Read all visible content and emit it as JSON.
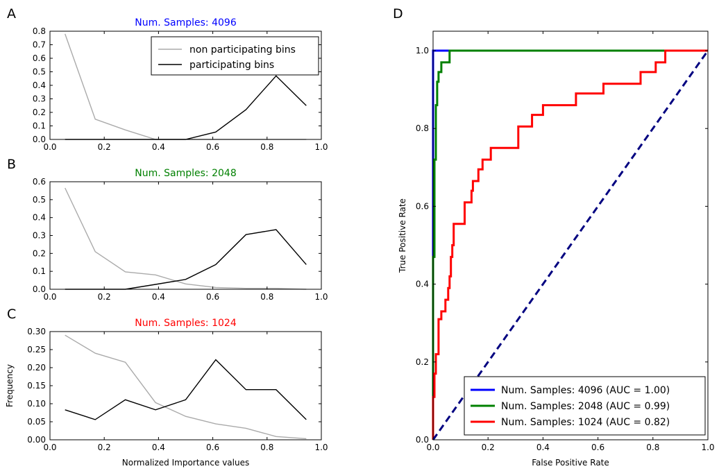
{
  "chart_data": [
    {
      "panel": "A",
      "type": "line",
      "title": "Num. Samples: 4096",
      "title_color": "#0000ff",
      "xlabel": "",
      "ylabel": "",
      "xlim": [
        0,
        1.0
      ],
      "ylim": [
        0,
        0.8
      ],
      "xticks": [
        0,
        0.2,
        0.4,
        0.6,
        0.8,
        1.0
      ],
      "xtick_labels": [
        "0.0",
        "0.2",
        "0.4",
        "0.6",
        "0.8",
        "1.0"
      ],
      "yticks": [
        0,
        0.1,
        0.2,
        0.3,
        0.4,
        0.5,
        0.6,
        0.7,
        0.8
      ],
      "ytick_labels": [
        "0.0",
        "0.1",
        "0.2",
        "0.3",
        "0.4",
        "0.5",
        "0.6",
        "0.7",
        "0.8"
      ],
      "legend": "top-right",
      "x": [
        0.0556,
        0.1667,
        0.2778,
        0.3889,
        0.5,
        0.6111,
        0.7222,
        0.8333,
        0.9444
      ],
      "series": [
        {
          "name": "non participating bins",
          "color": "#aaaaaa",
          "values": [
            0.78,
            0.15,
            0.07,
            0.0,
            0.0,
            0.0,
            0.0,
            0.0,
            0.0
          ]
        },
        {
          "name": "participating bins",
          "color": "#000000",
          "values": [
            0.0,
            0.0,
            0.0,
            0.0,
            0.0,
            0.055,
            0.22,
            0.47,
            0.25
          ]
        }
      ]
    },
    {
      "panel": "B",
      "type": "line",
      "title": "Num. Samples: 2048",
      "title_color": "#008000",
      "xlabel": "",
      "ylabel": "",
      "xlim": [
        0,
        1.0
      ],
      "ylim": [
        0,
        0.6
      ],
      "xticks": [
        0,
        0.2,
        0.4,
        0.6,
        0.8,
        1.0
      ],
      "xtick_labels": [
        "0.0",
        "0.2",
        "0.4",
        "0.6",
        "0.8",
        "1.0"
      ],
      "yticks": [
        0,
        0.1,
        0.2,
        0.3,
        0.4,
        0.5,
        0.6
      ],
      "ytick_labels": [
        "0.0",
        "0.1",
        "0.2",
        "0.3",
        "0.4",
        "0.5",
        "0.6"
      ],
      "x": [
        0.0556,
        0.1667,
        0.2778,
        0.3889,
        0.5,
        0.6111,
        0.7222,
        0.8333,
        0.9444
      ],
      "series": [
        {
          "name": "non participating bins",
          "color": "#aaaaaa",
          "values": [
            0.565,
            0.21,
            0.097,
            0.08,
            0.03,
            0.01,
            0.005,
            0.005,
            0.0
          ]
        },
        {
          "name": "participating bins",
          "color": "#000000",
          "values": [
            0.0,
            0.0,
            0.0,
            0.027,
            0.055,
            0.138,
            0.305,
            0.333,
            0.138
          ]
        }
      ]
    },
    {
      "panel": "C",
      "type": "line",
      "title": "Num. Samples: 1024",
      "title_color": "#ff0000",
      "xlabel": "Normalized Importance values",
      "ylabel": "Frequency",
      "xlim": [
        0,
        1.0
      ],
      "ylim": [
        0,
        0.3
      ],
      "xticks": [
        0,
        0.2,
        0.4,
        0.6,
        0.8,
        1.0
      ],
      "xtick_labels": [
        "0.0",
        "0.2",
        "0.4",
        "0.6",
        "0.8",
        "1.0"
      ],
      "yticks": [
        0,
        0.05,
        0.1,
        0.15,
        0.2,
        0.25,
        0.3
      ],
      "ytick_labels": [
        "0.00",
        "0.05",
        "0.10",
        "0.15",
        "0.20",
        "0.25",
        "0.30"
      ],
      "x": [
        0.0556,
        0.1667,
        0.2778,
        0.3889,
        0.5,
        0.6111,
        0.7222,
        0.8333,
        0.9444
      ],
      "series": [
        {
          "name": "non participating bins",
          "color": "#aaaaaa",
          "values": [
            0.29,
            0.24,
            0.215,
            0.103,
            0.065,
            0.044,
            0.032,
            0.009,
            0.003
          ]
        },
        {
          "name": "participating bins",
          "color": "#000000",
          "values": [
            0.083,
            0.056,
            0.111,
            0.083,
            0.111,
            0.222,
            0.139,
            0.139,
            0.056
          ]
        }
      ]
    },
    {
      "panel": "D",
      "type": "line",
      "title": "",
      "xlabel": "False Positive Rate",
      "ylabel": "True Positive Rate",
      "xlim": [
        0,
        1.0
      ],
      "ylim": [
        0,
        1.05
      ],
      "xticks": [
        0,
        0.2,
        0.4,
        0.6,
        0.8,
        1.0
      ],
      "xtick_labels": [
        "0.0",
        "0.2",
        "0.4",
        "0.6",
        "0.8",
        "1.0"
      ],
      "yticks": [
        0,
        0.2,
        0.4,
        0.6,
        0.8,
        1.0
      ],
      "ytick_labels": [
        "0.0",
        "0.2",
        "0.4",
        "0.6",
        "0.8",
        "1.0"
      ],
      "legend": "bottom-right",
      "series": [
        {
          "name": "Num. Samples: 4096 (AUC = 1.00)",
          "color": "#0000ff",
          "points": [
            [
              0,
              0
            ],
            [
              0,
              1.0
            ],
            [
              1.0,
              1.0
            ]
          ]
        },
        {
          "name": "Num. Samples: 2048 (AUC = 0.99)",
          "color": "#008000",
          "points": [
            [
              0,
              0
            ],
            [
              0,
              0.47
            ],
            [
              0.005,
              0.47
            ],
            [
              0.005,
              0.72
            ],
            [
              0.01,
              0.72
            ],
            [
              0.01,
              0.86
            ],
            [
              0.015,
              0.86
            ],
            [
              0.015,
              0.92
            ],
            [
              0.02,
              0.92
            ],
            [
              0.02,
              0.945
            ],
            [
              0.03,
              0.945
            ],
            [
              0.03,
              0.97
            ],
            [
              0.06,
              0.97
            ],
            [
              0.06,
              1.0
            ],
            [
              1.0,
              1.0
            ]
          ]
        },
        {
          "name": "Num. Samples: 1024 (AUC = 0.82)",
          "color": "#ff0000",
          "points": [
            [
              0,
              0
            ],
            [
              0,
              0.11
            ],
            [
              0.005,
              0.11
            ],
            [
              0.005,
              0.17
            ],
            [
              0.01,
              0.17
            ],
            [
              0.01,
              0.22
            ],
            [
              0.02,
              0.22
            ],
            [
              0.02,
              0.25
            ],
            [
              0.02,
              0.31
            ],
            [
              0.03,
              0.31
            ],
            [
              0.03,
              0.33
            ],
            [
              0.045,
              0.33
            ],
            [
              0.045,
              0.36
            ],
            [
              0.055,
              0.36
            ],
            [
              0.055,
              0.39
            ],
            [
              0.06,
              0.39
            ],
            [
              0.06,
              0.42
            ],
            [
              0.065,
              0.42
            ],
            [
              0.065,
              0.47
            ],
            [
              0.07,
              0.47
            ],
            [
              0.07,
              0.5
            ],
            [
              0.075,
              0.5
            ],
            [
              0.075,
              0.555
            ],
            [
              0.115,
              0.555
            ],
            [
              0.115,
              0.61
            ],
            [
              0.14,
              0.61
            ],
            [
              0.14,
              0.64
            ],
            [
              0.145,
              0.64
            ],
            [
              0.145,
              0.665
            ],
            [
              0.165,
              0.665
            ],
            [
              0.165,
              0.695
            ],
            [
              0.18,
              0.695
            ],
            [
              0.18,
              0.72
            ],
            [
              0.21,
              0.72
            ],
            [
              0.21,
              0.75
            ],
            [
              0.31,
              0.75
            ],
            [
              0.31,
              0.805
            ],
            [
              0.36,
              0.805
            ],
            [
              0.36,
              0.835
            ],
            [
              0.4,
              0.835
            ],
            [
              0.4,
              0.86
            ],
            [
              0.52,
              0.86
            ],
            [
              0.52,
              0.89
            ],
            [
              0.62,
              0.89
            ],
            [
              0.62,
              0.915
            ],
            [
              0.755,
              0.915
            ],
            [
              0.755,
              0.945
            ],
            [
              0.81,
              0.945
            ],
            [
              0.81,
              0.97
            ],
            [
              0.845,
              0.97
            ],
            [
              0.845,
              1.0
            ],
            [
              1.0,
              1.0
            ]
          ]
        },
        {
          "name": "",
          "color": "#000080",
          "dashed": true,
          "points": [
            [
              0,
              0
            ],
            [
              1.0,
              1.0
            ]
          ]
        }
      ]
    }
  ]
}
